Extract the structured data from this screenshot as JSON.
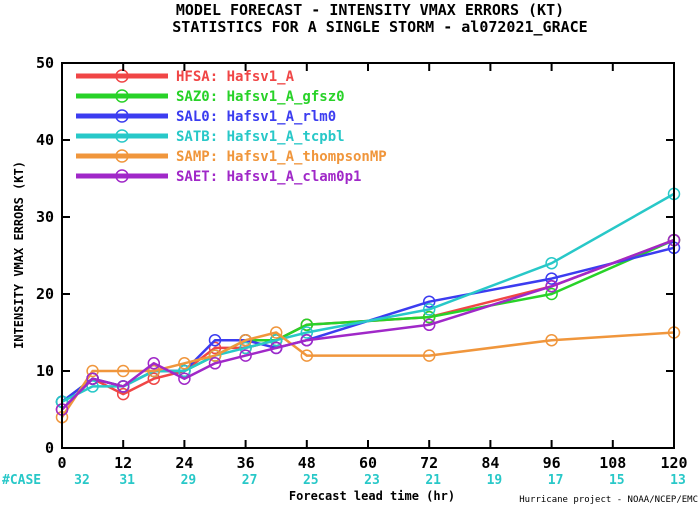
{
  "chart_data": {
    "type": "line",
    "title": "MODEL FORECAST - INTENSITY VMAX ERRORS (KT)",
    "subtitle": "STATISTICS FOR A SINGLE STORM - al072021_GRACE",
    "xlabel": "Forecast lead time (hr)",
    "ylabel": "INTENSITY VMAX ERRORS (KT)",
    "xlim": [
      0,
      120
    ],
    "ylim": [
      0,
      50
    ],
    "x_ticks": [
      "0",
      "12",
      "24",
      "36",
      "48",
      "60",
      "72",
      "84",
      "96",
      "108",
      "120"
    ],
    "y_ticks": [
      "0",
      "10",
      "20",
      "30",
      "40",
      "50"
    ],
    "grid": false,
    "legend_position": "top-left",
    "case_label": "#CASE",
    "case_counts": [
      "32",
      "31",
      "29",
      "27",
      "25",
      "23",
      "21",
      "19",
      "17",
      "15",
      "13"
    ],
    "credit": "Hurricane project - NOAA/NCEP/EMC",
    "series": [
      {
        "name": "HFSA: Hafsv1_A",
        "color": "#f04646",
        "points": [
          [
            0,
            5
          ],
          [
            6,
            9
          ],
          [
            12,
            7
          ],
          [
            18,
            9
          ],
          [
            24,
            10
          ],
          [
            30,
            13
          ],
          [
            36,
            13
          ],
          [
            42,
            14
          ],
          [
            48,
            16
          ],
          [
            72,
            17
          ],
          [
            96,
            21
          ],
          [
            120,
            27
          ]
        ]
      },
      {
        "name": "SAZ0: Hafsv1_A_gfsz0",
        "color": "#28d228",
        "points": [
          [
            0,
            6
          ],
          [
            6,
            9
          ],
          [
            12,
            8
          ],
          [
            18,
            10
          ],
          [
            24,
            10
          ],
          [
            30,
            12
          ],
          [
            36,
            14
          ],
          [
            42,
            14
          ],
          [
            48,
            16
          ],
          [
            72,
            17
          ],
          [
            96,
            20
          ],
          [
            120,
            27
          ]
        ]
      },
      {
        "name": "SAL0: Hafsv1_A_rlm0",
        "color": "#3c3cf0",
        "points": [
          [
            0,
            6
          ],
          [
            6,
            9
          ],
          [
            12,
            8
          ],
          [
            18,
            10
          ],
          [
            24,
            10
          ],
          [
            30,
            14
          ],
          [
            36,
            14
          ],
          [
            42,
            13
          ],
          [
            48,
            14
          ],
          [
            72,
            19
          ],
          [
            96,
            22
          ],
          [
            120,
            26
          ]
        ]
      },
      {
        "name": "SATB: Hafsv1_A_tcpbl",
        "color": "#28c8c8",
        "points": [
          [
            0,
            6
          ],
          [
            6,
            8
          ],
          [
            12,
            8
          ],
          [
            18,
            10
          ],
          [
            24,
            10
          ],
          [
            30,
            12
          ],
          [
            36,
            13
          ],
          [
            42,
            14
          ],
          [
            48,
            15
          ],
          [
            72,
            18
          ],
          [
            96,
            24
          ],
          [
            120,
            33
          ]
        ]
      },
      {
        "name": "SAMP: Hafsv1_A_thompsonMP",
        "color": "#f0963c",
        "points": [
          [
            0,
            4
          ],
          [
            6,
            10
          ],
          [
            12,
            10
          ],
          [
            18,
            10
          ],
          [
            24,
            11
          ],
          [
            30,
            12
          ],
          [
            36,
            14
          ],
          [
            42,
            15
          ],
          [
            48,
            12
          ],
          [
            72,
            12
          ],
          [
            96,
            14
          ],
          [
            120,
            15
          ]
        ]
      },
      {
        "name": "SAET: Hafsv1_A_clam0p1",
        "color": "#a028c8",
        "points": [
          [
            0,
            5
          ],
          [
            6,
            9
          ],
          [
            12,
            8
          ],
          [
            18,
            11
          ],
          [
            24,
            9
          ],
          [
            30,
            11
          ],
          [
            36,
            12
          ],
          [
            42,
            13
          ],
          [
            48,
            14
          ],
          [
            72,
            16
          ],
          [
            96,
            21
          ],
          [
            120,
            27
          ]
        ]
      }
    ]
  }
}
